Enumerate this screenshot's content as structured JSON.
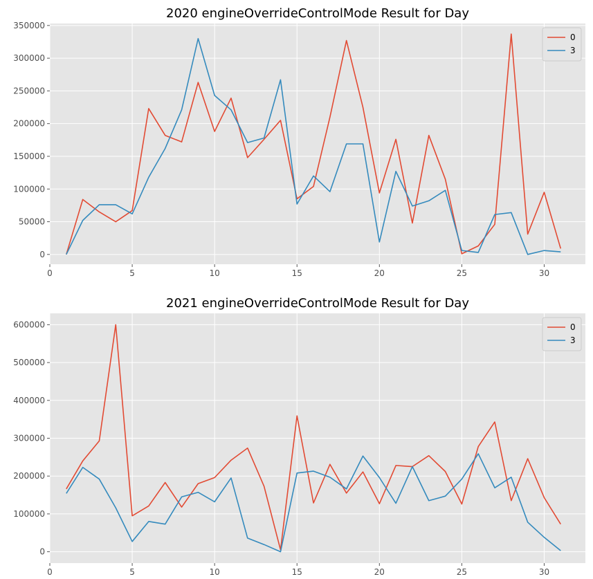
{
  "chart_data": [
    {
      "type": "line",
      "title": "2020 engineOverrideControlMode Result for Day",
      "xlabel": "",
      "ylabel": "",
      "xlim": [
        0,
        32.5
      ],
      "ylim": [
        -15000,
        353000
      ],
      "xticks": [
        0,
        5,
        10,
        15,
        20,
        25,
        30
      ],
      "yticks": [
        0,
        50000,
        100000,
        150000,
        200000,
        250000,
        300000,
        350000
      ],
      "grid": true,
      "legend": "top-right",
      "x": [
        1,
        2,
        3,
        4,
        5,
        6,
        7,
        8,
        9,
        10,
        11,
        12,
        13,
        14,
        15,
        16,
        17,
        18,
        19,
        20,
        21,
        22,
        23,
        24,
        25,
        26,
        27,
        28,
        29,
        30,
        31
      ],
      "series": [
        {
          "name": "0",
          "color": "#e24a33",
          "values": [
            0,
            84000,
            65000,
            50000,
            67000,
            223000,
            182000,
            172000,
            263000,
            188000,
            239000,
            148000,
            176000,
            205000,
            85000,
            104000,
            210000,
            327000,
            225000,
            94000,
            176000,
            48000,
            182000,
            115000,
            1000,
            13000,
            46000,
            337000,
            31000,
            95000,
            9000
          ]
        },
        {
          "name": "3",
          "color": "#348abd",
          "values": [
            0,
            52000,
            76000,
            76000,
            62000,
            118000,
            162000,
            221000,
            330000,
            243000,
            221000,
            171000,
            178000,
            267000,
            77000,
            120000,
            96000,
            169000,
            169000,
            19000,
            127000,
            74000,
            82000,
            98000,
            6000,
            3000,
            61000,
            64000,
            0,
            6000,
            4000
          ]
        }
      ]
    },
    {
      "type": "line",
      "title": "2021 engineOverrideControlMode Result for Day",
      "xlabel": "",
      "ylabel": "",
      "xlim": [
        0,
        32.5
      ],
      "ylim": [
        -30000,
        630000
      ],
      "xticks": [
        0,
        5,
        10,
        15,
        20,
        25,
        30
      ],
      "yticks": [
        0,
        100000,
        200000,
        300000,
        400000,
        500000,
        600000
      ],
      "grid": true,
      "legend": "top-right",
      "x": [
        1,
        2,
        3,
        4,
        5,
        6,
        7,
        8,
        9,
        10,
        11,
        12,
        13,
        14,
        15,
        16,
        17,
        18,
        19,
        20,
        21,
        22,
        23,
        24,
        25,
        26,
        27,
        28,
        29,
        30,
        31
      ],
      "series": [
        {
          "name": "0",
          "color": "#e24a33",
          "values": [
            166000,
            240000,
            293000,
            600000,
            95000,
            121000,
            183000,
            118000,
            180000,
            196000,
            242000,
            274000,
            173000,
            5000,
            359000,
            129000,
            231000,
            155000,
            211000,
            127000,
            228000,
            225000,
            254000,
            212000,
            126000,
            278000,
            343000,
            135000,
            246000,
            143000,
            73000
          ]
        },
        {
          "name": "3",
          "color": "#348abd",
          "values": [
            154000,
            223000,
            192000,
            116000,
            27000,
            80000,
            73000,
            145000,
            157000,
            132000,
            195000,
            36000,
            19000,
            0,
            208000,
            213000,
            197000,
            166000,
            253000,
            196000,
            128000,
            225000,
            135000,
            147000,
            192000,
            259000,
            169000,
            197000,
            78000,
            38000,
            3000
          ]
        }
      ]
    }
  ]
}
